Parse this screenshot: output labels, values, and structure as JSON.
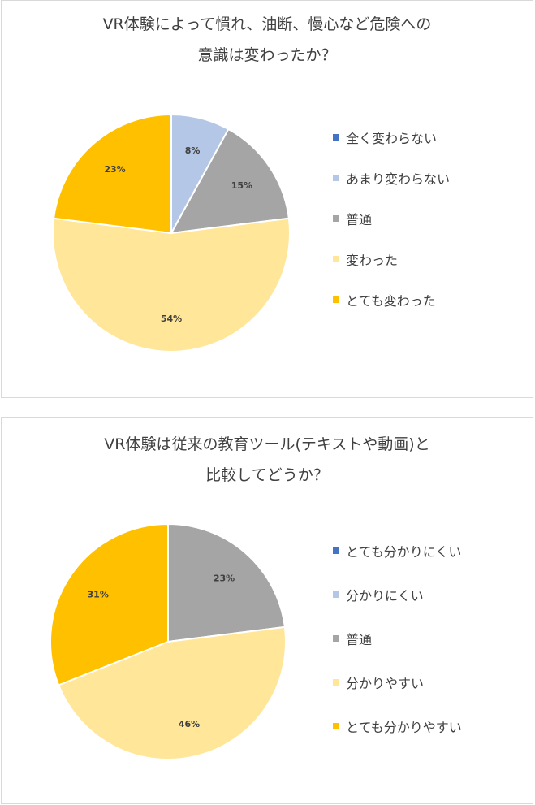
{
  "chart_data": [
    {
      "type": "pie",
      "title_lines": [
        "VR体験によって慣れ、油断、慢心など危険への",
        "意識は変わったか？"
      ],
      "slices": [
        {
          "name": "全く変わらない",
          "value": 0,
          "color": "#4472c4",
          "label": ""
        },
        {
          "name": "あまり変わらない",
          "value": 8,
          "color": "#b4c7e7",
          "label": "8%"
        },
        {
          "name": "普通",
          "value": 15,
          "color": "#a5a5a5",
          "label": "15%"
        },
        {
          "name": "変わった",
          "value": 54,
          "color": "#ffe699",
          "label": "54%"
        },
        {
          "name": "とても変わった",
          "value": 23,
          "color": "#ffc000",
          "label": "23%"
        }
      ],
      "legend_position": "right"
    },
    {
      "type": "pie",
      "title_lines": [
        "VR体験は従来の教育ツール(テキストや動画)と",
        "比較してどうか？"
      ],
      "slices": [
        {
          "name": "とても分かりにくい",
          "value": 0,
          "color": "#4472c4",
          "label": ""
        },
        {
          "name": "分かりにくい",
          "value": 0,
          "color": "#b4c7e7",
          "label": ""
        },
        {
          "name": "普通",
          "value": 23,
          "color": "#a5a5a5",
          "label": "23%"
        },
        {
          "name": "分かりやすい",
          "value": 46,
          "color": "#ffe699",
          "label": "46%"
        },
        {
          "name": "とても分かりやすい",
          "value": 31,
          "color": "#ffc000",
          "label": "31%"
        }
      ],
      "legend_position": "right"
    }
  ]
}
